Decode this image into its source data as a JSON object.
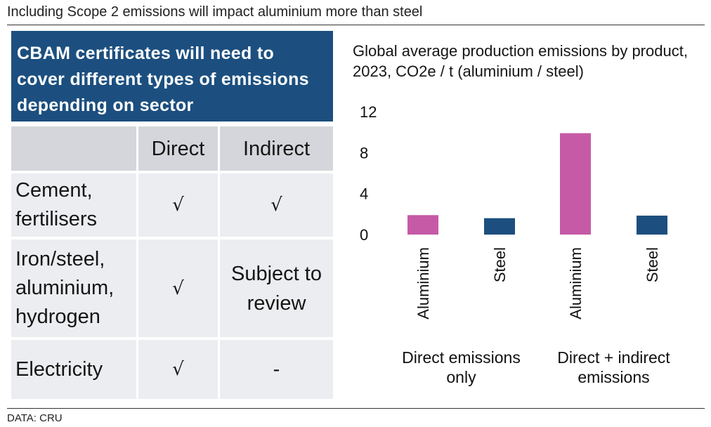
{
  "page": {
    "title": "Including Scope 2 emissions will impact aluminium more than steel",
    "source": "DATA: CRU"
  },
  "cbam": {
    "banner": "CBAM certificates will need to cover different types of emissions depending on sector",
    "table": {
      "headers": [
        "",
        "Direct",
        "Indirect"
      ],
      "rows": [
        {
          "sector": "Cement, fertilisers",
          "direct": "√",
          "indirect": "√"
        },
        {
          "sector": "Iron/steel, aluminium, hydrogen",
          "direct": "√",
          "indirect": "Subject to review"
        },
        {
          "sector": "Electricity",
          "direct": "√",
          "indirect": "-"
        }
      ]
    }
  },
  "chart_data": {
    "type": "bar",
    "title": "Global average production emissions by product, 2023, CO2e / t (aluminium / steel)",
    "xlabel": "",
    "ylabel": "",
    "ylim": [
      0,
      12
    ],
    "yticks": [
      0,
      4,
      8,
      12
    ],
    "grid": false,
    "legend": "none",
    "categories": [
      "Aluminium",
      "Steel",
      "Aluminium",
      "Steel"
    ],
    "groups": [
      {
        "label": "Direct emissions only",
        "categories": [
          0,
          1
        ]
      },
      {
        "label": "Direct + indirect emissions",
        "categories": [
          2,
          3
        ]
      }
    ],
    "values": [
      1.9,
      1.6,
      9.9,
      1.85
    ],
    "colors": [
      "#c65aa6",
      "#1c4f7f",
      "#c65aa6",
      "#1c4f7f"
    ]
  }
}
